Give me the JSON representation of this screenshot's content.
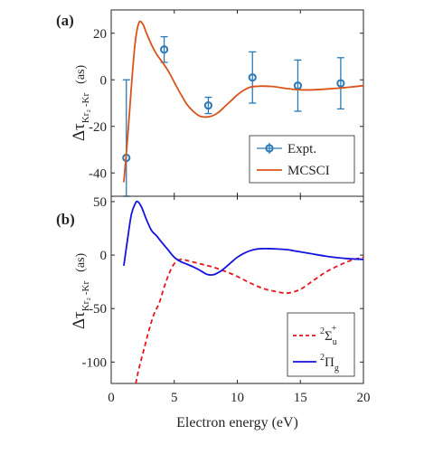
{
  "chart_data": [
    {
      "type": "line",
      "panel_label": "(a)",
      "xlabel": "",
      "ylabel": {
        "main": "Δτ",
        "subscript": "Kr₂ -Kr",
        "unit": "(as)"
      },
      "xlim": [
        0,
        20
      ],
      "ylim": [
        -50,
        30
      ],
      "yticks": [
        20,
        0,
        -20,
        -40
      ],
      "ytick_labels": [
        "20",
        "0",
        "-20",
        "-40"
      ],
      "legend": {
        "position": "bottom-right"
      },
      "series": [
        {
          "name": "Expt.",
          "kind": "errorbar",
          "color": "#2a7ab8",
          "x": [
            1.2,
            4.2,
            7.7,
            11.2,
            14.8,
            18.2
          ],
          "y": [
            -33.5,
            13.0,
            -11.0,
            1.0,
            -2.5,
            -1.5
          ],
          "err": [
            33.5,
            5.5,
            3.5,
            11.0,
            11.0,
            11.0
          ]
        },
        {
          "name": "MCSCI",
          "kind": "line",
          "color": "#d95319",
          "x": [
            1.0,
            1.3,
            1.6,
            1.9,
            2.2,
            2.5,
            2.8,
            3.2,
            3.6,
            4.0,
            4.5,
            5.0,
            5.5,
            6.0,
            6.5,
            7.0,
            7.5,
            8.0,
            8.5,
            9.0,
            9.5,
            10.0,
            10.5,
            11.0,
            11.5,
            12.0,
            12.5,
            13.0,
            14.0,
            15.0,
            16.0,
            17.0,
            18.0,
            19.0,
            20.0
          ],
          "y": [
            -44,
            -25,
            -3,
            16,
            24.5,
            24,
            20,
            15,
            11,
            8,
            4,
            -1,
            -6,
            -10.5,
            -13.5,
            -15.5,
            -16,
            -15.5,
            -14,
            -11.5,
            -9,
            -6.5,
            -4.5,
            -3.2,
            -2.8,
            -2.7,
            -2.8,
            -3,
            -3.8,
            -4.3,
            -4.3,
            -4.0,
            -3.6,
            -3.1,
            -2.5
          ]
        }
      ]
    },
    {
      "type": "line",
      "panel_label": "(b)",
      "xlabel": "Electron energy (eV)",
      "ylabel": {
        "main": "Δτ",
        "subscript": "Kr₂ -Kr",
        "unit": "(as)"
      },
      "xlim": [
        0,
        20
      ],
      "ylim": [
        -120,
        55
      ],
      "xticks": [
        0,
        5,
        10,
        15,
        20
      ],
      "xtick_labels": [
        "0",
        "5",
        "10",
        "15",
        "20"
      ],
      "yticks": [
        50,
        0,
        -50,
        -100
      ],
      "ytick_labels": [
        "50",
        "0",
        "-50",
        "-100"
      ],
      "legend": {
        "position": "bottom-right"
      },
      "series": [
        {
          "name": "²Σu⁺",
          "name_parts": {
            "sup_pre": "2",
            "base": "Σ",
            "sub": "u",
            "sup": "+"
          },
          "kind": "line",
          "dash": true,
          "color": "#e8141c",
          "x": [
            1.95,
            2.2,
            2.6,
            3.0,
            3.4,
            3.8,
            4.2,
            4.6,
            5.0,
            5.5,
            6.0,
            7.0,
            8.0,
            9.0,
            10.0,
            11.0,
            12.0,
            13.0,
            14.0,
            15.0,
            16.0,
            17.0,
            18.0,
            19.0,
            20.0
          ],
          "y": [
            -120,
            -106,
            -88,
            -70,
            -55,
            -45,
            -30,
            -17,
            -8,
            -4,
            -5,
            -8,
            -11,
            -15,
            -20,
            -26,
            -31,
            -34,
            -35.5,
            -32,
            -24,
            -16,
            -10,
            -5,
            -2
          ]
        },
        {
          "name": "²Πg",
          "name_parts": {
            "sup_pre": "2",
            "base": "Π",
            "sub": "g"
          },
          "kind": "line",
          "color": "#1414e0",
          "x": [
            1.0,
            1.3,
            1.6,
            1.9,
            2.1,
            2.4,
            2.8,
            3.2,
            3.6,
            4.0,
            4.5,
            5.0,
            5.5,
            6.0,
            6.5,
            7.0,
            7.5,
            7.8,
            8.2,
            8.8,
            9.5,
            10.0,
            10.5,
            11.0,
            11.5,
            12.0,
            12.5,
            13.0,
            13.5,
            14.0,
            14.5,
            15.0,
            16.0,
            17.0,
            18.0,
            19.0,
            20.0
          ],
          "y": [
            -10,
            15,
            38,
            48,
            50,
            45,
            33,
            23,
            18,
            12,
            5,
            -2,
            -6,
            -8.5,
            -11,
            -14,
            -17.5,
            -18.5,
            -18,
            -14,
            -7,
            -2,
            1.5,
            4,
            5.5,
            6,
            6,
            5.8,
            5.5,
            5,
            4,
            3,
            1,
            -1,
            -2.5,
            -3.5,
            -4
          ]
        }
      ]
    }
  ]
}
